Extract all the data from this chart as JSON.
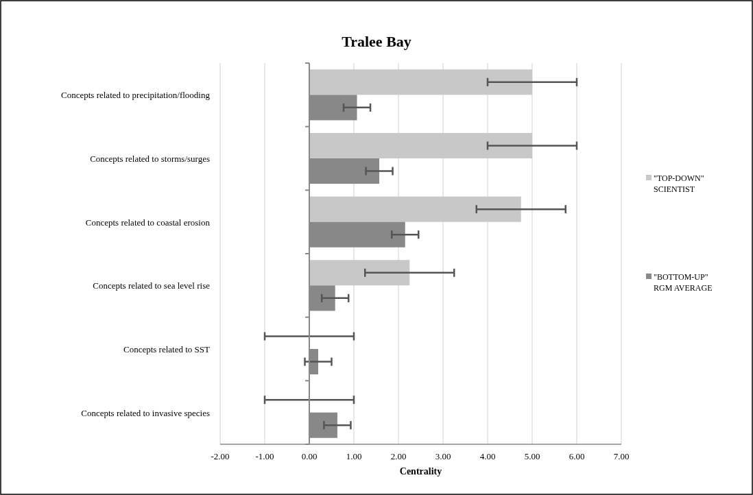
{
  "chart_data": {
    "type": "bar",
    "orientation": "horizontal",
    "title": "Tralee Bay",
    "xlabel": "Centrality",
    "categories": [
      "Concepts related to precipitation/flooding",
      "Concepts related to storms/surges",
      "Concepts related to coastal erosion",
      "Concepts related to sea level rise",
      "Concepts related to SST",
      "Concepts related to invasive species"
    ],
    "series": [
      {
        "name": "\"TOP-DOWN\" SCIENTIST",
        "color": "#c8c8c8",
        "values": [
          5.0,
          5.0,
          4.75,
          2.25,
          0,
          0
        ],
        "errors": [
          1,
          1,
          1,
          1,
          1,
          1
        ]
      },
      {
        "name": "\"BOTTOM-UP\" RGM AVERAGE",
        "color": "#888888",
        "values": [
          1.07,
          1.57,
          2.15,
          0.58,
          0.2,
          0.63
        ],
        "errors": [
          0.3,
          0.3,
          0.3,
          0.3,
          0.3,
          0.3
        ]
      }
    ],
    "xlim": [
      -2,
      7
    ],
    "xticks": [
      {
        "value": -2,
        "label": "-2.00"
      },
      {
        "value": -1,
        "label": "-1.00"
      },
      {
        "value": 0,
        "label": "0.00"
      },
      {
        "value": 1,
        "label": "1.00"
      },
      {
        "value": 2,
        "label": "2.00"
      },
      {
        "value": 3,
        "label": "3.00"
      },
      {
        "value": 4,
        "label": "4.00"
      },
      {
        "value": 5,
        "label": "5.00"
      },
      {
        "value": 6,
        "label": "6.00"
      },
      {
        "value": 7,
        "label": "7.00"
      }
    ],
    "grid": "x",
    "legend": "right"
  }
}
